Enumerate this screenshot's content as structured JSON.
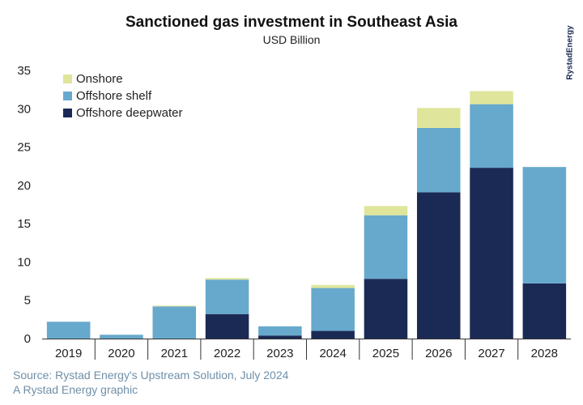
{
  "header": {
    "title": "Sanctioned gas investment in Southeast Asia",
    "subtitle": "USD Billion",
    "brand": "RystadEnergy"
  },
  "footer": {
    "source": "Source: Rystad Energy's Upstream Solution, July 2024",
    "credit": "A Rystad Energy graphic"
  },
  "chart_data": {
    "type": "bar",
    "stacked": true,
    "title": "Sanctioned gas investment in Southeast Asia",
    "subtitle": "USD Billion",
    "xlabel": "",
    "ylabel": "",
    "categories": [
      "2019",
      "2020",
      "2021",
      "2022",
      "2023",
      "2024",
      "2025",
      "2026",
      "2027",
      "2028"
    ],
    "ylim": [
      0,
      35
    ],
    "yticks": [
      0,
      5,
      10,
      15,
      20,
      25,
      30,
      35
    ],
    "grid": false,
    "legend_position": "top-left",
    "series": [
      {
        "name": "Offshore deepwater",
        "color": "#1b2a55",
        "values": [
          0,
          0,
          0,
          3.2,
          0.4,
          1.0,
          7.8,
          19.1,
          22.3,
          7.2
        ]
      },
      {
        "name": "Offshore shelf",
        "color": "#67a9cc",
        "values": [
          2.2,
          0.5,
          4.2,
          4.5,
          1.2,
          5.6,
          8.3,
          8.4,
          8.3,
          15.2
        ]
      },
      {
        "name": "Onshore",
        "color": "#dfe59a",
        "values": [
          0,
          0,
          0.1,
          0.2,
          0,
          0.4,
          1.2,
          2.6,
          1.7,
          0
        ]
      }
    ],
    "legend_order": [
      "Onshore",
      "Offshore shelf",
      "Offshore deepwater"
    ]
  }
}
